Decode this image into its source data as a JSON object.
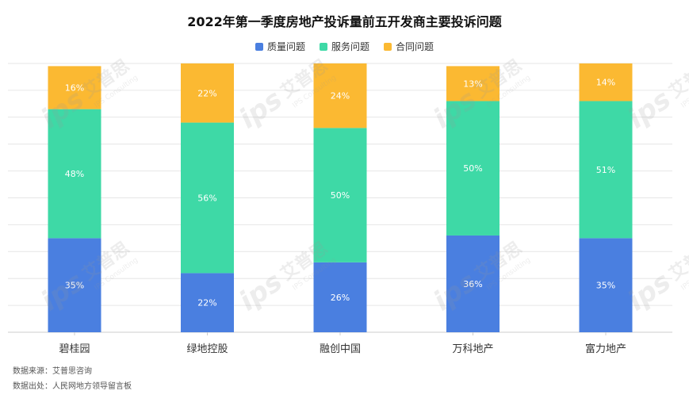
{
  "chart_data": {
    "type": "bar",
    "stacked": true,
    "title": "2022年第一季度房地产投诉量前五开发商主要投诉问题",
    "categories": [
      "碧桂园",
      "绿地控股",
      "融创中国",
      "万科地产",
      "富力地产"
    ],
    "series": [
      {
        "name": "质量问题",
        "values": [
          35,
          22,
          26,
          36,
          35
        ],
        "color": "#4a7fe0"
      },
      {
        "name": "服务问题",
        "values": [
          48,
          56,
          50,
          50,
          51
        ],
        "color": "#3ed9a6"
      },
      {
        "name": "合同问题",
        "values": [
          16,
          22,
          24,
          13,
          14
        ],
        "color": "#fbb932"
      }
    ],
    "value_suffix": "%",
    "ylim": [
      0,
      100
    ],
    "grid": true,
    "legend_position": "top-center"
  },
  "watermark": {
    "brand": "艾普思",
    "sub": "IPS Consulting",
    "mark": "ips"
  },
  "footer": {
    "source": "数据来源：艾普思咨询",
    "origin": "数据出处：人民网地方领导留言板"
  }
}
